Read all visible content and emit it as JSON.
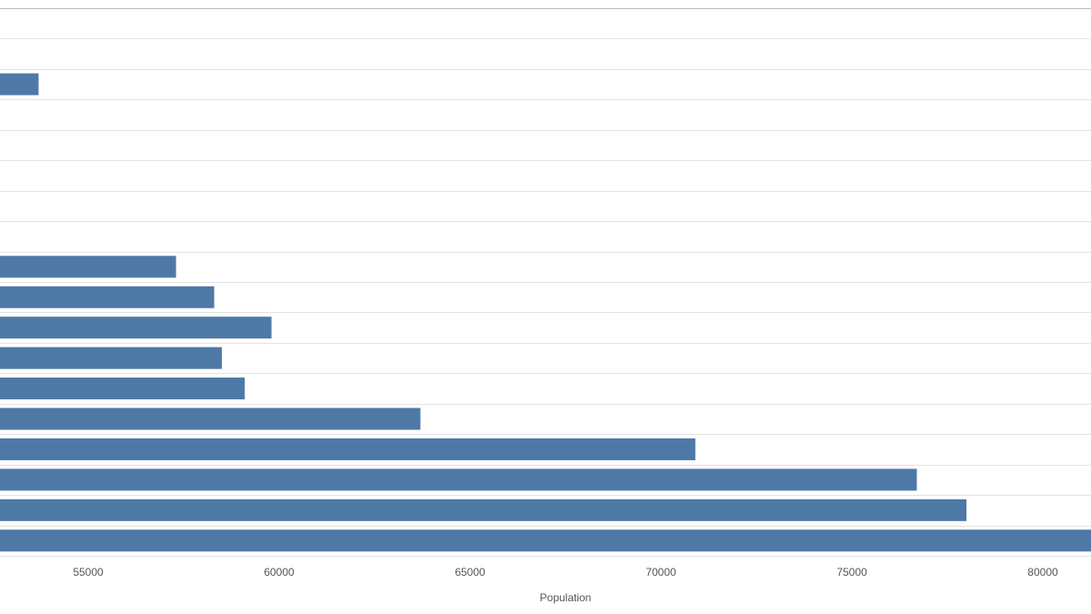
{
  "chart_data": {
    "type": "barh",
    "x_label": "Population",
    "categories": [
      null,
      null,
      null,
      null,
      null,
      null,
      null,
      null,
      null,
      null,
      null,
      null,
      null,
      null,
      null,
      null,
      null,
      null
    ],
    "values": [
      null,
      null,
      53700,
      null,
      null,
      null,
      null,
      null,
      57300,
      58300,
      59800,
      58500,
      59100,
      63700,
      70900,
      76700,
      78000,
      81500
    ],
    "color": "#4e79a7",
    "xlim": [
      52690,
      81262
    ],
    "xticks": [
      55000,
      60000,
      65000,
      70000,
      75000,
      80000
    ],
    "grid": true
  }
}
